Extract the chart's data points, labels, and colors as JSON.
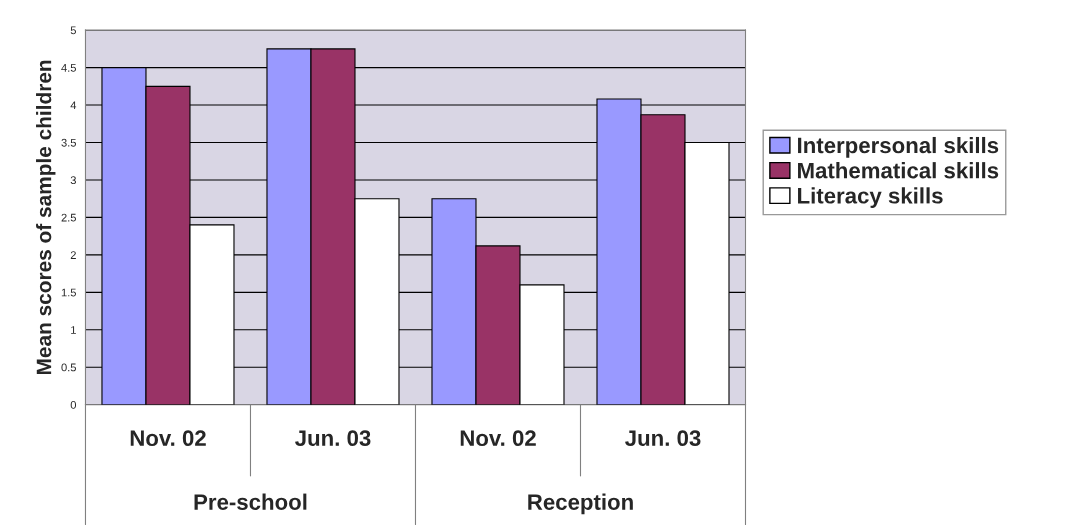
{
  "chart_data": {
    "type": "bar",
    "ylabel": "Mean scores of sample children",
    "categories": [
      "Nov. 02",
      "Jun. 03",
      "Nov. 02",
      "Jun. 03"
    ],
    "series": [
      {
        "name": "Interpersonal skills",
        "color": "#9999ff",
        "values": [
          4.5,
          4.75,
          2.75,
          4.08
        ]
      },
      {
        "name": "Mathematical skills",
        "color": "#993366",
        "values": [
          4.25,
          4.75,
          2.12,
          3.87
        ]
      },
      {
        "name": "Literacy skills",
        "color": "#ffffff",
        "values": [
          2.4,
          2.75,
          1.6,
          3.5
        ]
      }
    ],
    "annotations": [
      "Pre-school",
      "Reception"
    ],
    "ylim": [
      0,
      5
    ],
    "yticks": [
      0,
      0.5,
      1,
      1.5,
      2,
      2.5,
      3,
      3.5,
      4,
      4.5,
      5
    ],
    "grid": "y",
    "legend": "right"
  }
}
